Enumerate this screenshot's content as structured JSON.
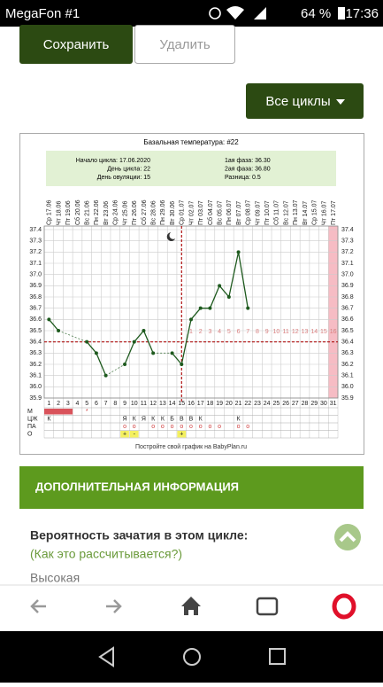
{
  "status_bar": {
    "carrier": "MegaFon #1",
    "battery": "64 %",
    "time": "17:36"
  },
  "buttons": {
    "save": "Сохранить",
    "delete": "Удалить",
    "cycles": "Все циклы"
  },
  "chart": {
    "type": "line",
    "title": "Базальная температура: #22",
    "info_left": [
      "Начало цикла: 17.06.2020",
      "День цикла: 22",
      "День овуляции: 15"
    ],
    "info_right": [
      "1ая фаза: 36.30",
      "2ая фаза: 36.80",
      "Разница: 0.5"
    ],
    "categories": [
      "Ср 17.06",
      "Чт 18.06",
      "Пт 19.06",
      "Сб 20.06",
      "Вс 21.06",
      "Пн 22.06",
      "Вт 23.06",
      "Ср 24.06",
      "Чт 25.06",
      "Пт 26.06",
      "Сб 27.06",
      "Вс 28.06",
      "Пн 29.06",
      "Вт 30.06",
      "Ср 01.07",
      "Чт 02.07",
      "Пт 03.07",
      "Сб 04.07",
      "Вс 05.07",
      "Пн 06.07",
      "Вт 07.07",
      "Ср 08.07",
      "Чт 09.07",
      "Пт 10.07",
      "Сб 11.07",
      "Вс 12.07",
      "Пн 13.07",
      "Вт 14.07",
      "Ср 15.07",
      "Чт 16.07",
      "Пт 17.07"
    ],
    "days": [
      1,
      2,
      3,
      4,
      5,
      6,
      7,
      8,
      9,
      10,
      11,
      12,
      13,
      14,
      15,
      16,
      17,
      18,
      19,
      20,
      21,
      22,
      23,
      24,
      25,
      26,
      27,
      28,
      29,
      30,
      31
    ],
    "values": [
      36.6,
      36.5,
      null,
      null,
      36.4,
      36.3,
      36.1,
      null,
      36.2,
      36.4,
      36.5,
      36.3,
      null,
      36.3,
      36.2,
      36.6,
      36.7,
      36.7,
      36.9,
      36.8,
      37.2,
      36.7,
      null,
      null,
      null,
      null,
      null,
      null,
      null,
      null,
      null
    ],
    "color": "#1e5a1e",
    "ylim": [
      35.9,
      37.4
    ],
    "yticks": [
      35.9,
      {
        "value": 36,
        "label": "36.0"
      },
      36.1,
      36.2,
      36.3,
      36.4,
      36.5,
      36.6,
      36.7,
      36.8,
      36.9,
      {
        "value": 37,
        "label": "37.0"
      },
      37.1,
      37.2,
      37.3,
      37.4
    ],
    "coverline": 36.4,
    "ovulation_day": 15,
    "luteal_days": [
      null,
      null,
      null,
      null,
      null,
      null,
      null,
      null,
      null,
      null,
      null,
      null,
      null,
      null,
      null,
      1,
      2,
      3,
      4,
      5,
      6,
      7,
      8,
      9,
      10,
      11,
      12,
      13,
      14,
      15,
      16
    ],
    "row_labels": [
      "М",
      "ЦЖ",
      "ПА",
      "О"
    ],
    "menses": [
      null,
      null,
      null,
      null,
      "*",
      null,
      null,
      null,
      null,
      null,
      null,
      null,
      null,
      null,
      null,
      null,
      null,
      null,
      null,
      null,
      null,
      null,
      null,
      null,
      null,
      null,
      null,
      null,
      null,
      null,
      null
    ],
    "fluid": [
      "К",
      null,
      null,
      null,
      null,
      null,
      null,
      null,
      "Я",
      "К",
      "Я",
      "К",
      "К",
      "Б",
      "В",
      "В",
      "К",
      null,
      null,
      null,
      "К",
      null,
      null,
      null,
      null,
      null,
      null,
      null,
      null,
      null,
      null
    ],
    "intercourse": [
      null,
      null,
      null,
      null,
      null,
      null,
      null,
      null,
      "о",
      "о",
      null,
      "о",
      "о",
      "о",
      "о",
      "о",
      "о",
      "о",
      "о",
      null,
      "о",
      "о",
      null,
      null,
      null,
      null,
      null,
      null,
      null,
      null,
      null
    ],
    "tests": [
      null,
      null,
      null,
      null,
      null,
      null,
      null,
      null,
      "+",
      "-",
      null,
      null,
      null,
      null,
      "+",
      null,
      null,
      null,
      null,
      null,
      null,
      null,
      null,
      null,
      null,
      null,
      null,
      null,
      null,
      null,
      null
    ],
    "footer": "Постройте свой график на BabyPlan.ru"
  },
  "info_section": {
    "header": "ДОПОЛНИТЕЛЬНАЯ ИНФОРМАЦИЯ",
    "question": "Вероятность зачатия в этом цикле:",
    "link": "(Как это рассчитывается?)",
    "answer": "Высокая"
  }
}
